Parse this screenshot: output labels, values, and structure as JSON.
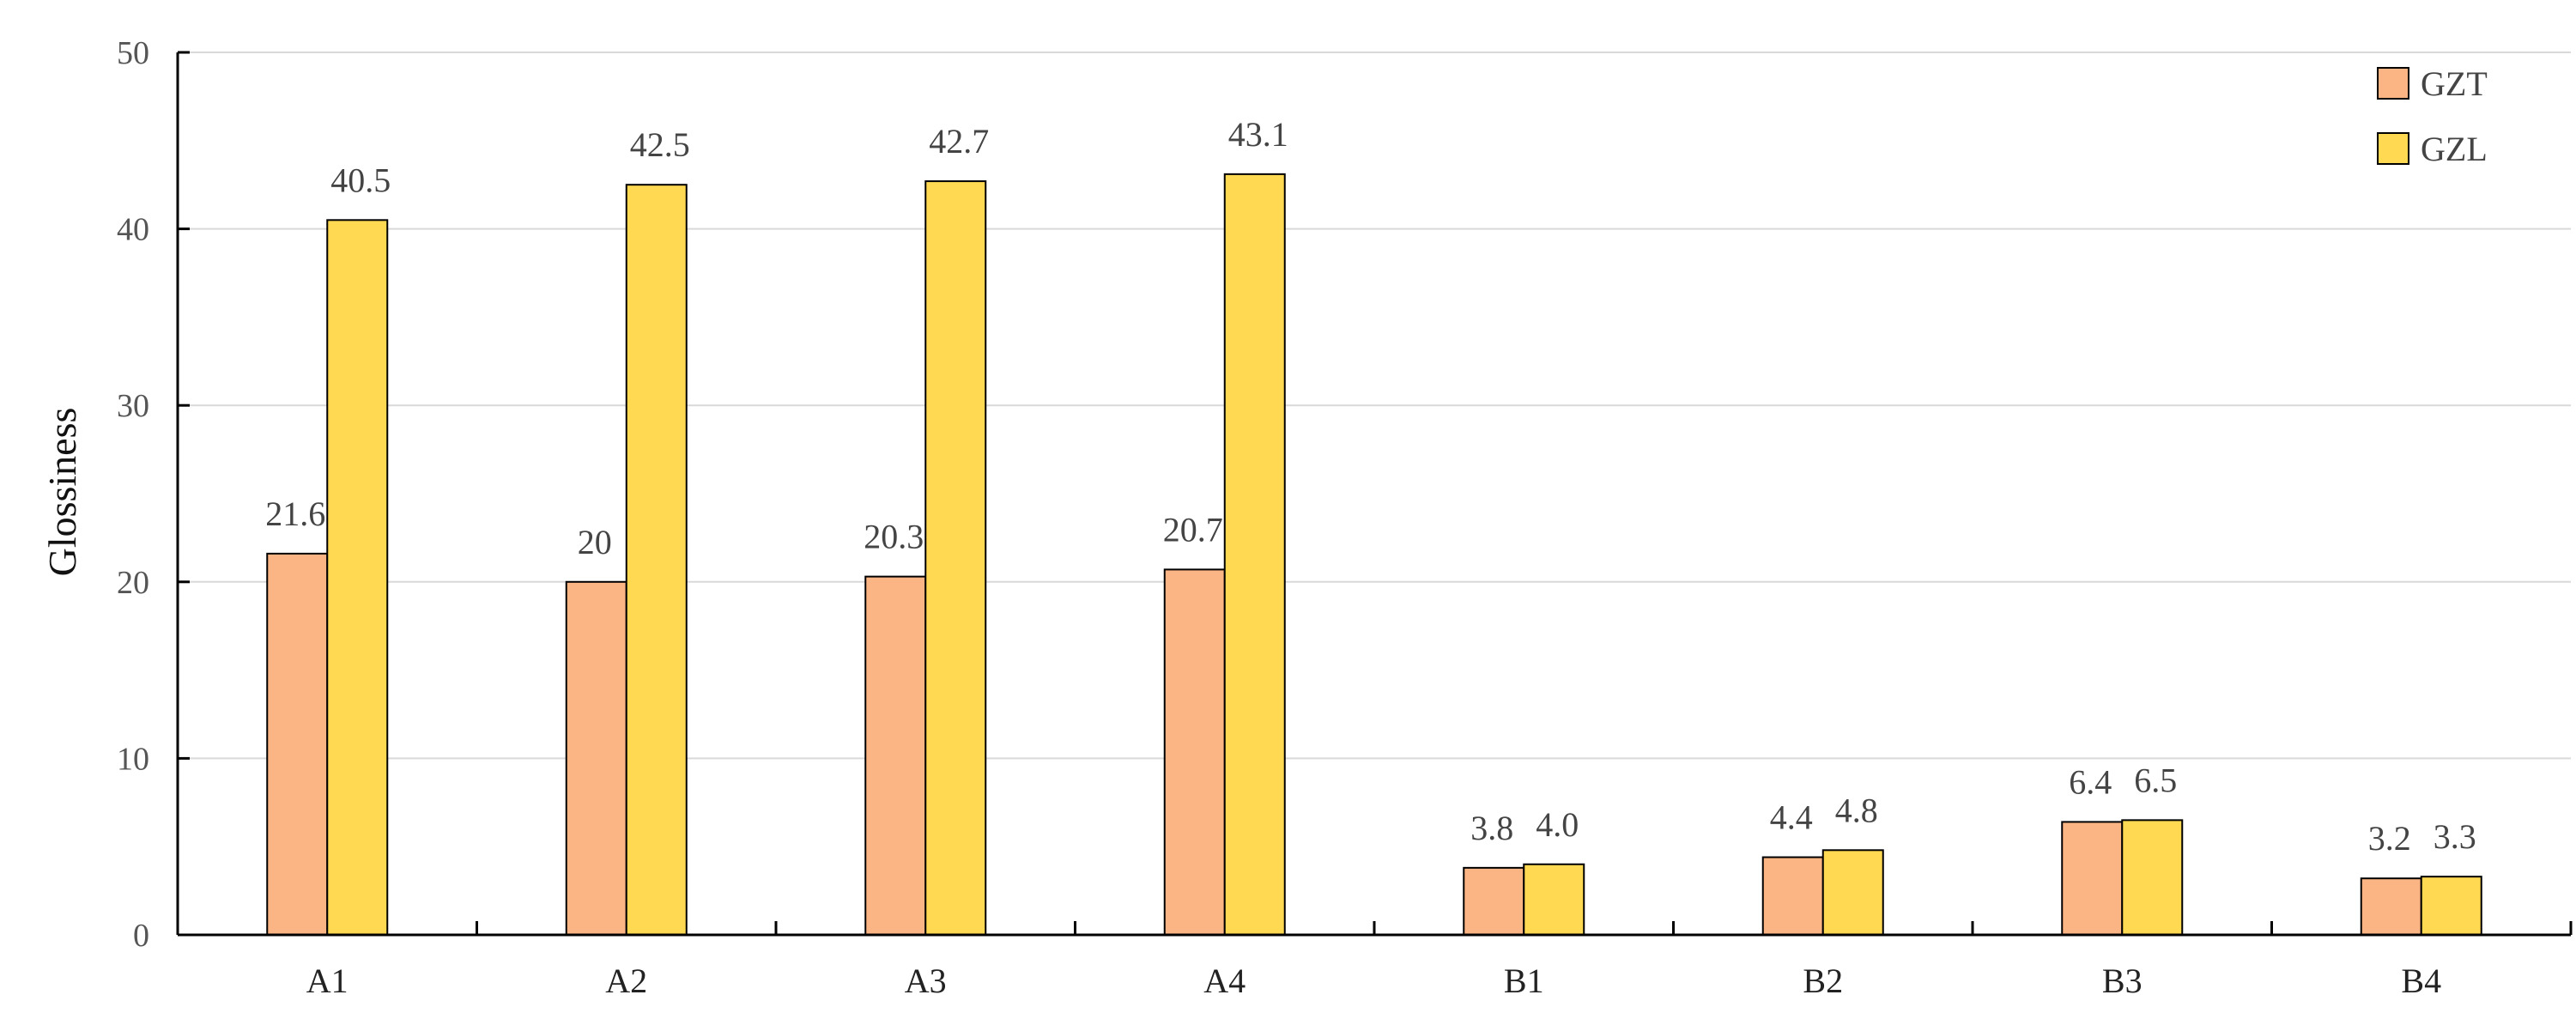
{
  "chart_data": {
    "type": "bar",
    "title": "",
    "xlabel": "",
    "ylabel": "Glossiness",
    "ylim": [
      0,
      50
    ],
    "yticks": [
      0,
      10,
      20,
      30,
      40,
      50
    ],
    "grid": "horizontal",
    "legend_position": "top-right",
    "categories": [
      "A1",
      "A2",
      "A3",
      "A4",
      "B1",
      "B2",
      "B3",
      "B4"
    ],
    "series": [
      {
        "name": "GZT",
        "color": "#FBB584",
        "values": [
          21.6,
          20,
          20.3,
          20.7,
          3.8,
          4.4,
          6.4,
          3.2
        ],
        "labels": [
          "21.6",
          "20",
          "20.3",
          "20.7",
          "3.8",
          "4.4",
          "6.4",
          "3.2"
        ]
      },
      {
        "name": "GZL",
        "color": "#FFD952",
        "values": [
          40.5,
          42.5,
          42.7,
          43.1,
          4.0,
          4.8,
          6.5,
          3.3
        ],
        "labels": [
          "40.5",
          "42.5",
          "42.7",
          "43.1",
          "4.0",
          "4.8",
          "6.5",
          "3.3"
        ]
      }
    ]
  }
}
